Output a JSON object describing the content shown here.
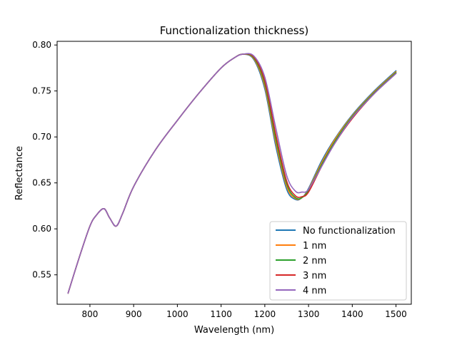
{
  "chart_data": {
    "type": "line",
    "title": "Functionalization thickness)",
    "xlabel": "Wavelength (nm)",
    "ylabel": "Reflectance",
    "xlim": [
      725,
      1535
    ],
    "ylim": [
      0.518,
      0.804
    ],
    "xticks": [
      800,
      900,
      1000,
      1100,
      1200,
      1300,
      1400,
      1500
    ],
    "xtick_labels": [
      "800",
      "900",
      "1000",
      "1100",
      "1200",
      "1300",
      "1400",
      "1500"
    ],
    "yticks": [
      0.55,
      0.6,
      0.65,
      0.7,
      0.75,
      0.8
    ],
    "ytick_labels": [
      "0.55",
      "0.60",
      "0.65",
      "0.70",
      "0.75",
      "0.80"
    ],
    "grid": false,
    "legend_position": "lower-right",
    "x": [
      750,
      775,
      800,
      815,
      832,
      845,
      860,
      875,
      900,
      950,
      1000,
      1050,
      1100,
      1130,
      1150,
      1175,
      1200,
      1225,
      1250,
      1270,
      1285,
      1300,
      1330,
      1360,
      1400,
      1450,
      1500
    ],
    "series": [
      {
        "name": "No functionalization",
        "color": "#1f77b4",
        "values": [
          0.53,
          0.568,
          0.603,
          0.615,
          0.622,
          0.612,
          0.603,
          0.617,
          0.646,
          0.686,
          0.718,
          0.748,
          0.775,
          0.786,
          0.79,
          0.784,
          0.752,
          0.69,
          0.643,
          0.632,
          0.634,
          0.644,
          0.674,
          0.698,
          0.724,
          0.75,
          0.772
        ]
      },
      {
        "name": "1 nm",
        "color": "#ff7f0e",
        "values": [
          0.53,
          0.568,
          0.603,
          0.615,
          0.622,
          0.612,
          0.603,
          0.617,
          0.646,
          0.686,
          0.718,
          0.748,
          0.775,
          0.786,
          0.79,
          0.785,
          0.755,
          0.694,
          0.646,
          0.633,
          0.634,
          0.643,
          0.672,
          0.697,
          0.723,
          0.749,
          0.771
        ]
      },
      {
        "name": "2 nm",
        "color": "#2ca02c",
        "values": [
          0.53,
          0.568,
          0.603,
          0.615,
          0.622,
          0.612,
          0.603,
          0.617,
          0.646,
          0.686,
          0.718,
          0.748,
          0.775,
          0.786,
          0.79,
          0.786,
          0.758,
          0.698,
          0.649,
          0.634,
          0.634,
          0.642,
          0.67,
          0.695,
          0.722,
          0.748,
          0.77
        ]
      },
      {
        "name": "3 nm",
        "color": "#d62728",
        "values": [
          0.53,
          0.568,
          0.603,
          0.615,
          0.622,
          0.612,
          0.603,
          0.617,
          0.646,
          0.686,
          0.718,
          0.748,
          0.775,
          0.786,
          0.79,
          0.787,
          0.761,
          0.703,
          0.652,
          0.636,
          0.635,
          0.64,
          0.668,
          0.693,
          0.72,
          0.747,
          0.769
        ]
      },
      {
        "name": "4 nm",
        "color": "#9467bd",
        "values": [
          0.53,
          0.568,
          0.603,
          0.615,
          0.622,
          0.612,
          0.603,
          0.617,
          0.646,
          0.686,
          0.718,
          0.748,
          0.775,
          0.786,
          0.79,
          0.788,
          0.765,
          0.71,
          0.658,
          0.641,
          0.64,
          0.643,
          0.668,
          0.693,
          0.721,
          0.747,
          0.769
        ]
      }
    ]
  }
}
